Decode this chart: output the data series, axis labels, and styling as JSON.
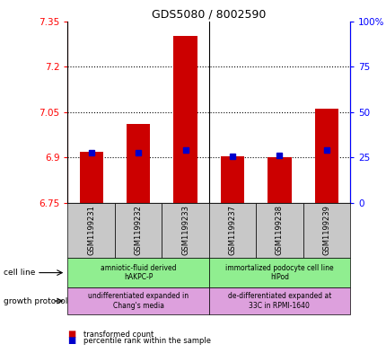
{
  "title": "GDS5080 / 8002590",
  "samples": [
    "GSM1199231",
    "GSM1199232",
    "GSM1199233",
    "GSM1199237",
    "GSM1199238",
    "GSM1199239"
  ],
  "red_values": [
    6.92,
    7.01,
    7.3,
    6.905,
    6.9,
    7.06
  ],
  "blue_values": [
    6.915,
    6.915,
    6.925,
    6.905,
    6.907,
    6.925
  ],
  "ylim_left": [
    6.75,
    7.35
  ],
  "ylim_right": [
    0,
    100
  ],
  "yticks_left": [
    6.75,
    6.9,
    7.05,
    7.2,
    7.35
  ],
  "yticks_right": [
    0,
    25,
    50,
    75,
    100
  ],
  "ytick_labels_left": [
    "6.75",
    "6.9",
    "7.05",
    "7.2",
    "7.35"
  ],
  "ytick_labels_right": [
    "0",
    "25",
    "50",
    "75",
    "100%"
  ],
  "grid_lines": [
    6.9,
    7.05,
    7.2
  ],
  "bar_color": "#CC0000",
  "dot_color": "#0000CC",
  "bar_base": 6.75,
  "cell_line_text1": "amniotic-fluid derived\nhAKPC-P",
  "cell_line_text2": "immortalized podocyte cell line\nhIPod",
  "growth_text1": "undifferentiated expanded in\nChang's media",
  "growth_text2": "de-differentiated expanded at\n33C in RPMI-1640",
  "cell_line_color": "#90EE90",
  "growth_color": "#DDA0DD",
  "gray_color": "#C8C8C8",
  "legend1": "transformed count",
  "legend2": "percentile rank within the sample"
}
